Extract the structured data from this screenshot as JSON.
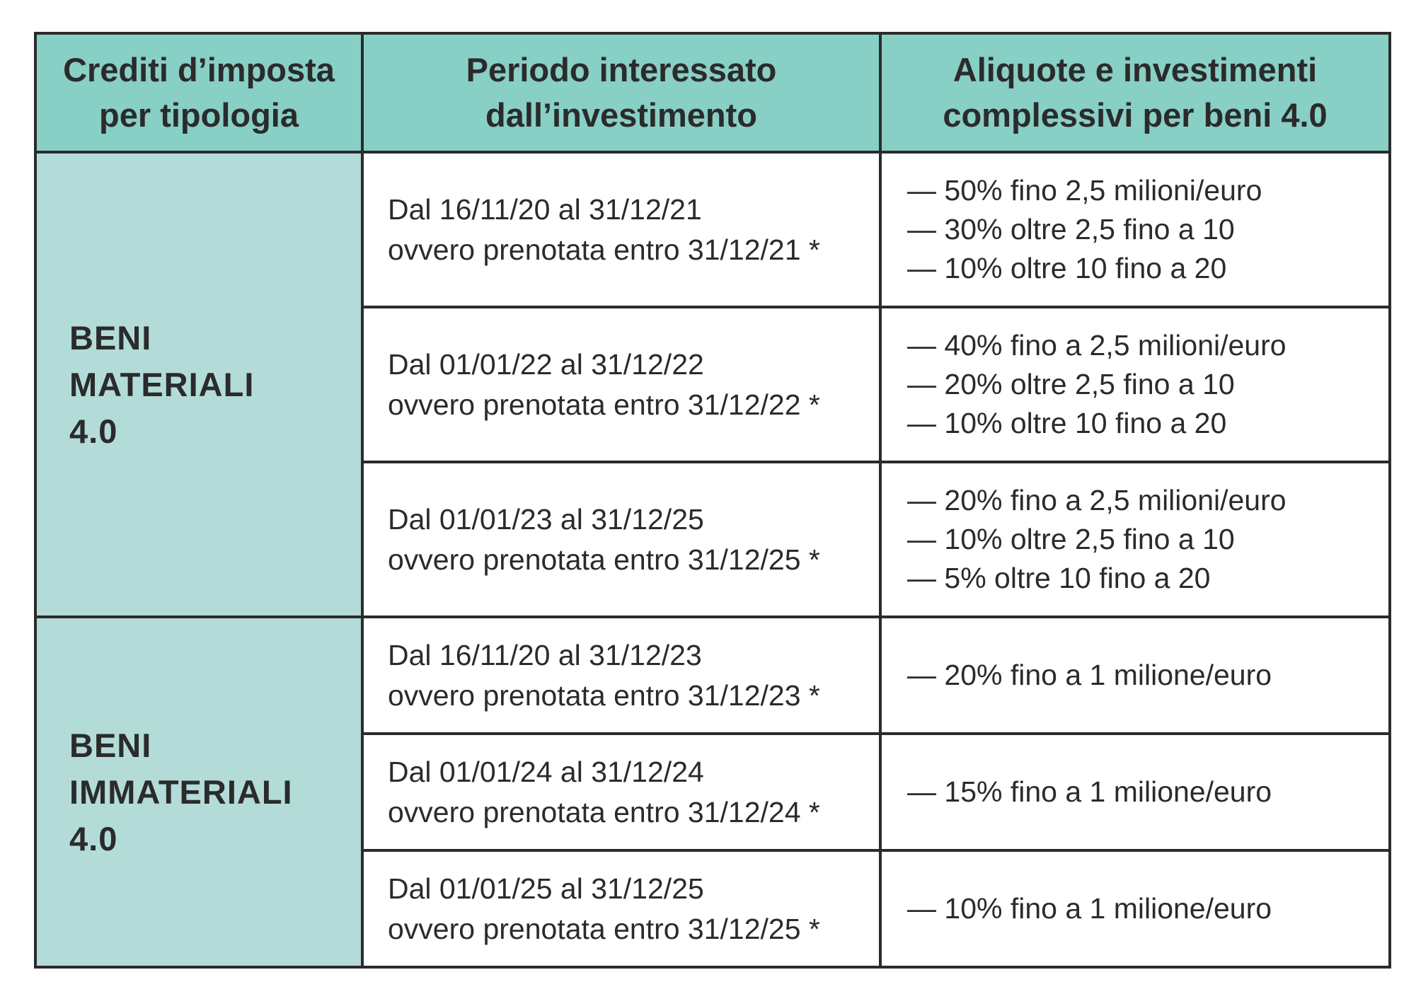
{
  "header": {
    "col1": [
      "Crediti d’imposta",
      "per tipologia"
    ],
    "col2": [
      "Periodo interessato",
      "dall’investimento"
    ],
    "col3": [
      "Aliquote e investimenti",
      "complessivi per beni 4.0"
    ]
  },
  "groups": [
    {
      "category": [
        "BENI",
        "MATERIALI",
        "4.0"
      ],
      "rows": [
        {
          "period": [
            "Dal 16/11/20 al 31/12/21",
            "ovvero prenotata entro 31/12/21 *"
          ],
          "rates": [
            "— 50% fino 2,5 milioni/euro",
            "— 30% oltre 2,5 fino a 10",
            "— 10% oltre 10 fino a 20"
          ]
        },
        {
          "period": [
            "Dal 01/01/22 al 31/12/22",
            "ovvero prenotata entro 31/12/22 *"
          ],
          "rates": [
            "— 40% fino a 2,5 milioni/euro",
            "— 20% oltre 2,5 fino a 10",
            "— 10% oltre 10 fino a 20"
          ]
        },
        {
          "period": [
            "Dal 01/01/23 al 31/12/25",
            "ovvero prenotata entro 31/12/25 *"
          ],
          "rates": [
            "— 20% fino a 2,5 milioni/euro",
            "— 10% oltre 2,5 fino a 10",
            "— 5% oltre 10 fino a 20"
          ]
        }
      ]
    },
    {
      "category": [
        "BENI",
        "IMMATERIALI",
        "4.0"
      ],
      "rows": [
        {
          "period": [
            "Dal 16/11/20 al 31/12/23",
            "ovvero prenotata entro 31/12/23 *"
          ],
          "rates": [
            "— 20% fino a 1 milione/euro"
          ]
        },
        {
          "period": [
            "Dal 01/01/24 al 31/12/24",
            "ovvero prenotata entro 31/12/24 *"
          ],
          "rates": [
            "— 15% fino a 1 milione/euro"
          ]
        },
        {
          "period": [
            "Dal 01/01/25 al 31/12/25",
            "ovvero prenotata entro 31/12/25 *"
          ],
          "rates": [
            "— 10% fino a 1 milione/euro"
          ]
        }
      ]
    }
  ],
  "colors": {
    "header_bg": "#88cfc5",
    "category_bg": "#b3dcd8",
    "border": "#2b2b2b",
    "text": "#2b2b2b"
  }
}
